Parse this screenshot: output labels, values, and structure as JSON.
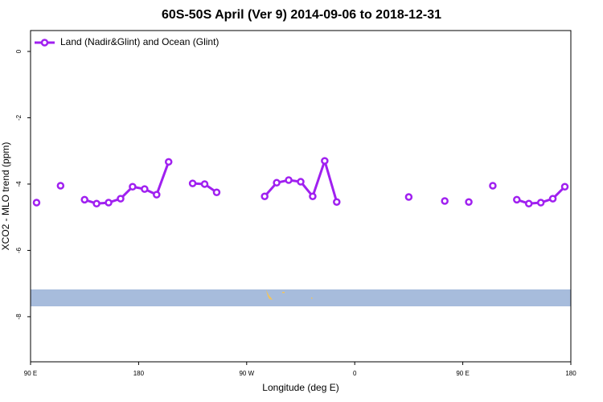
{
  "chart_data": {
    "type": "line",
    "title": "60S-50S April (Ver 9)   2014-09-06 to 2018-12-31",
    "x_label": "Longitude (deg E)",
    "y_label": "XCO2 - MLO trend (ppm)",
    "x": [
      95,
      105,
      115,
      125,
      135,
      145,
      155,
      165,
      175,
      185,
      195,
      205,
      215,
      225,
      235,
      245,
      255,
      265,
      275,
      285,
      295,
      305,
      315,
      325,
      335,
      345,
      355,
      365,
      375,
      385,
      395,
      405,
      415,
      425,
      435,
      445,
      455,
      465,
      475,
      485,
      495,
      505,
      515,
      525,
      535
    ],
    "series": [
      {
        "name": "Land (Nadir&Glint) and Ocean (Glint)",
        "color": "#a020f0",
        "values": [
          -4.56,
          null,
          -4.05,
          null,
          -4.47,
          -4.59,
          -4.56,
          -4.44,
          -4.08,
          -4.15,
          -4.32,
          -3.33,
          null,
          -3.98,
          -4.0,
          -4.25,
          null,
          null,
          null,
          -4.37,
          -3.96,
          -3.88,
          -3.93,
          -4.37,
          -3.3,
          -4.54,
          null,
          null,
          null,
          null,
          null,
          -4.39,
          null,
          null,
          -4.51,
          null,
          -4.54,
          null,
          -4.05,
          null,
          -4.47,
          -4.59,
          -4.56,
          -4.44,
          -4.08
        ]
      }
    ],
    "xlim": [
      90,
      540
    ],
    "xticks": [
      {
        "value": 90,
        "label": "90 E"
      },
      180,
      {
        "value": 270,
        "label": "90 W"
      },
      {
        "value": 360,
        "label": "0"
      },
      {
        "value": 450,
        "label": "90 E"
      },
      {
        "value": 540,
        "label": "180"
      }
    ],
    "ylim": [
      -9.36,
      0.63
    ],
    "yticks": [
      0,
      -2,
      -4,
      -6,
      -8
    ],
    "legend": "top-left"
  }
}
